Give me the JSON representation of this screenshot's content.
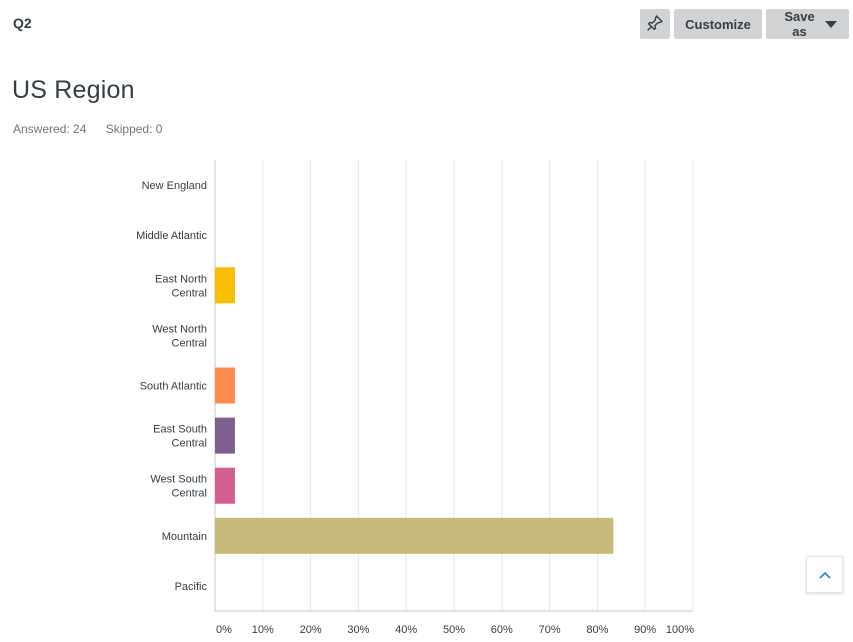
{
  "header": {
    "question_label": "Q2",
    "customize_label": "Customize",
    "save_as_label": "Save as",
    "icons": {
      "pin": "pin-icon",
      "caret": "caret-down-icon",
      "back_to_top": "chevron-up-icon"
    }
  },
  "question": {
    "title": "US Region",
    "answered": "Answered: 24",
    "skipped": "Skipped: 0"
  },
  "chart_data": {
    "type": "bar",
    "orientation": "horizontal",
    "title": "",
    "xlabel": "",
    "ylabel": "",
    "xlim": [
      0,
      100
    ],
    "x_ticks": [
      "0%",
      "10%",
      "20%",
      "30%",
      "40%",
      "50%",
      "60%",
      "70%",
      "80%",
      "90%",
      "100%"
    ],
    "grid": true,
    "categories": [
      [
        "New England"
      ],
      [
        "Middle Atlantic"
      ],
      [
        "East North",
        "Central"
      ],
      [
        "West North",
        "Central"
      ],
      [
        "South Atlantic"
      ],
      [
        "East South",
        "Central"
      ],
      [
        "West South",
        "Central"
      ],
      [
        "Mountain"
      ],
      [
        "Pacific"
      ]
    ],
    "values": [
      0,
      0,
      4.17,
      0,
      4.17,
      4.17,
      4.17,
      83.33,
      0
    ],
    "colors": [
      "#00bf6f",
      "#507cb6",
      "#f9be00",
      "#6bc8cd",
      "#ff8b4f",
      "#7d5e90",
      "#d25f90",
      "#c7b879",
      "#6b787f"
    ]
  }
}
